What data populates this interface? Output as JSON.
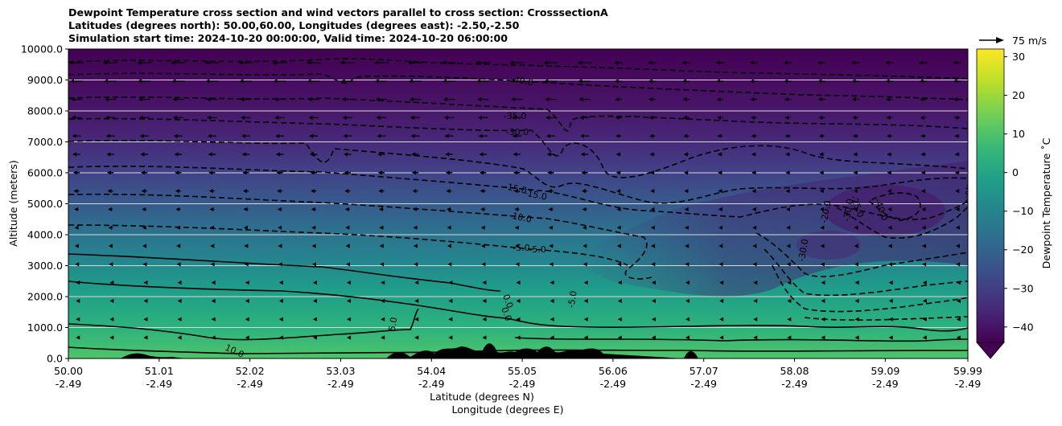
{
  "chart_data": {
    "type": "contourf",
    "title_lines": [
      "Dewpoint Temperature cross section and wind vectors parallel to cross section: CrosssectionA",
      "Latitudes (degrees north): 50.00,60.00, Longitudes (degrees east): -2.50,-2.50",
      "Simulation start time: 2024-10-20 00:00:00, Valid time: 2024-10-20 06:00:00"
    ],
    "ylabel": "Altitude (meters)",
    "xlabel_lines": [
      "Latitude (degrees N)",
      "Longitude (degrees E)"
    ],
    "y_ticks": [
      "0.0",
      "1000.0",
      "2000.0",
      "3000.0",
      "4000.0",
      "5000.0",
      "6000.0",
      "7000.0",
      "8000.0",
      "9000.0",
      "10000.0"
    ],
    "y_tick_values": [
      0,
      1000,
      2000,
      3000,
      4000,
      5000,
      6000,
      7000,
      8000,
      9000,
      10000
    ],
    "ylim": [
      0,
      10000
    ],
    "x_ticks": [
      {
        "lat": "50.00",
        "lon": "-2.49"
      },
      {
        "lat": "51.01",
        "lon": "-2.49"
      },
      {
        "lat": "52.02",
        "lon": "-2.49"
      },
      {
        "lat": "53.03",
        "lon": "-2.49"
      },
      {
        "lat": "54.04",
        "lon": "-2.49"
      },
      {
        "lat": "55.05",
        "lon": "-2.49"
      },
      {
        "lat": "56.06",
        "lon": "-2.49"
      },
      {
        "lat": "57.07",
        "lon": "-2.49"
      },
      {
        "lat": "58.08",
        "lon": "-2.49"
      },
      {
        "lat": "59.09",
        "lon": "-2.49"
      },
      {
        "lat": "59.99",
        "lon": "-2.49"
      }
    ],
    "xlim": [
      50.0,
      59.99
    ],
    "grid_y": true,
    "colorbar": {
      "label": "Dewpoint Temperature ˚C",
      "ticks": [
        "−40",
        "−30",
        "−20",
        "−10",
        "0",
        "10",
        "20",
        "30"
      ],
      "tick_values": [
        -40,
        -30,
        -20,
        -10,
        0,
        10,
        20,
        30
      ],
      "range": [
        -44,
        32
      ],
      "extend": "min",
      "colormap": "viridis"
    },
    "quiver_key": {
      "label": "75 m/s"
    },
    "contour_labels": [
      "-40.0",
      "-35.0",
      "-30.0",
      "-15.0",
      "-15.0",
      "-10.0",
      "-5.0",
      "-5.0",
      "-5.0",
      "5.0",
      "0.0",
      "0.0",
      "10.0",
      "-20.0",
      "-25.0",
      "-30.0",
      "-40.0",
      "-40.0",
      "-30.0"
    ],
    "colors": {
      "terrain": "#000000",
      "gridline": "#d9d9d9",
      "surface": "#4fc46a",
      "top": "#440154"
    }
  }
}
